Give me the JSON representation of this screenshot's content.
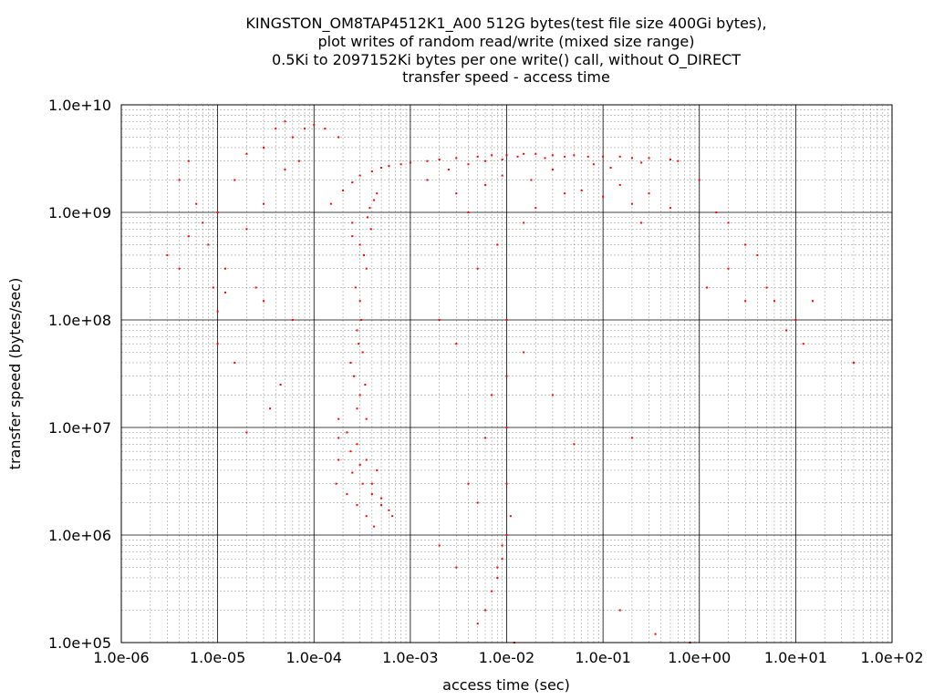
{
  "chart_data": {
    "type": "scatter",
    "title_lines": [
      "KINGSTON_OM8TAP4512K1_A00 512G bytes(test file size 400Gi bytes),",
      "plot writes of random read/write (mixed size range)",
      "0.5Ki to 2097152Ki bytes per one write() call, without O_DIRECT",
      "transfer speed - access time"
    ],
    "xlabel": "access time (sec)",
    "ylabel": "transfer speed (bytes/sec)",
    "x_scale": "log",
    "y_scale": "log",
    "xlim": [
      1e-06,
      100
    ],
    "ylim": [
      100000.0,
      10000000000.0
    ],
    "x_ticks": [
      "1.0e-06",
      "1.0e-05",
      "1.0e-04",
      "1.0e-03",
      "1.0e-02",
      "1.0e-01",
      "1.0e+00",
      "1.0e+01",
      "1.0e+02"
    ],
    "y_ticks": [
      "1.0e+05",
      "1.0e+06",
      "1.0e+07",
      "1.0e+08",
      "1.0e+09",
      "1.0e+10"
    ],
    "grid": true,
    "legend": "none",
    "marker_color": "#ff0000",
    "series": [
      {
        "points": [
          [
            0.00015,
            1200000000.0
          ],
          [
            0.0002,
            1600000000.0
          ],
          [
            0.00025,
            1900000000.0
          ],
          [
            0.0003,
            2200000000.0
          ],
          [
            0.0004,
            2400000000.0
          ],
          [
            0.0005,
            2600000000.0
          ],
          [
            0.0006,
            2700000000.0
          ],
          [
            0.0008,
            2800000000.0
          ],
          [
            0.001,
            2900000000.0
          ],
          [
            0.0015,
            3000000000.0
          ],
          [
            0.002,
            3100000000.0
          ],
          [
            0.003,
            3200000000.0
          ],
          [
            0.005,
            3300000000.0
          ],
          [
            0.007,
            3400000000.0
          ],
          [
            0.01,
            3400000000.0
          ],
          [
            0.015,
            3500000000.0
          ],
          [
            0.02,
            3500000000.0
          ],
          [
            0.03,
            3400000000.0
          ],
          [
            0.05,
            3400000000.0
          ],
          [
            0.07,
            3300000000.0
          ],
          [
            0.1,
            3300000000.0
          ],
          [
            0.15,
            3300000000.0
          ],
          [
            0.2,
            3200000000.0
          ],
          [
            0.3,
            3200000000.0
          ],
          [
            0.5,
            3100000000.0
          ],
          [
            0.6,
            3000000000.0
          ],
          [
            0.00025,
            800000000.0
          ],
          [
            0.0003,
            500000000.0
          ],
          [
            0.00035,
            300000000.0
          ],
          [
            0.0003,
            150000000.0
          ],
          [
            0.00028,
            80000000.0
          ],
          [
            0.00032,
            50000000.0
          ],
          [
            0.00026,
            30000000.0
          ],
          [
            0.0003,
            20000000.0
          ],
          [
            0.00035,
            12000000.0
          ],
          [
            0.00025,
            600000000.0
          ],
          [
            0.00033,
            400000000.0
          ],
          [
            0.00027,
            200000000.0
          ],
          [
            0.00031,
            100000000.0
          ],
          [
            0.00029,
            60000000.0
          ],
          [
            0.00024,
            40000000.0
          ],
          [
            0.00034,
            25000000.0
          ],
          [
            0.00028,
            15000000.0
          ],
          [
            0.00036,
            900000000.0
          ],
          [
            0.00038,
            1100000000.0
          ],
          [
            0.00042,
            1300000000.0
          ],
          [
            0.00039,
            700000000.0
          ],
          [
            0.00045,
            1500000000.0
          ],
          [
            0.00018,
            12000000.0
          ],
          [
            0.00022,
            9000000.0
          ],
          [
            0.00028,
            7000000.0
          ],
          [
            0.00035,
            5000000.0
          ],
          [
            0.00045,
            4000000.0
          ],
          [
            0.00018,
            8000000.0
          ],
          [
            0.00024,
            6000000.0
          ],
          [
            0.0003,
            4500000.0
          ],
          [
            0.0004,
            3000000.0
          ],
          [
            0.0005,
            2200000.0
          ],
          [
            0.0006,
            1700000.0
          ],
          [
            0.00017,
            3000000.0
          ],
          [
            0.00022,
            2400000.0
          ],
          [
            0.00028,
            1900000.0
          ],
          [
            0.00035,
            1500000.0
          ],
          [
            0.00042,
            1200000.0
          ],
          [
            0.00018,
            5000000.0
          ],
          [
            0.00025,
            3800000.0
          ],
          [
            0.00032,
            3000000.0
          ],
          [
            0.0004,
            2400000.0
          ],
          [
            0.0005,
            1900000.0
          ],
          [
            0.00065,
            1500000.0
          ],
          [
            0.005,
            150000.0
          ],
          [
            0.006,
            200000.0
          ],
          [
            0.007,
            300000.0
          ],
          [
            0.008,
            400000.0
          ],
          [
            0.009,
            600000.0
          ],
          [
            0.01,
            1000000.0
          ],
          [
            0.01,
            3000000.0
          ],
          [
            0.01,
            10000000.0
          ],
          [
            0.01,
            30000000.0
          ],
          [
            0.01,
            100000000.0
          ],
          [
            0.008,
            500000.0
          ],
          [
            0.009,
            800000.0
          ],
          [
            0.011,
            1500000.0
          ],
          [
            0.012,
            100000.0
          ],
          [
            0.005,
            2000000.0
          ],
          [
            0.003,
            500000.0
          ],
          [
            0.002,
            800000.0
          ],
          [
            0.004,
            3000000.0
          ],
          [
            0.006,
            8000000.0
          ],
          [
            0.007,
            20000000.0
          ],
          [
            0.003,
            60000000.0
          ],
          [
            0.002,
            100000000.0
          ],
          [
            0.005,
            300000000.0
          ],
          [
            0.008,
            500000000.0
          ],
          [
            0.015,
            800000000.0
          ],
          [
            0.02,
            1100000000.0
          ],
          [
            0.04,
            1500000000.0
          ],
          [
            0.06,
            1600000000.0
          ],
          [
            0.1,
            1400000000.0
          ],
          [
            0.15,
            1800000000.0
          ],
          [
            0.2,
            1200000000.0
          ],
          [
            0.25,
            800000000.0
          ],
          [
            0.3,
            1500000000.0
          ],
          [
            0.5,
            1100000000.0
          ],
          [
            1,
            2000000000.0
          ],
          [
            1.5,
            1000000000.0
          ],
          [
            2,
            800000000.0
          ],
          [
            3,
            500000000.0
          ],
          [
            4,
            400000000.0
          ],
          [
            1.2,
            200000000.0
          ],
          [
            2,
            300000000.0
          ],
          [
            3,
            150000000.0
          ],
          [
            5,
            200000000.0
          ],
          [
            6,
            150000000.0
          ],
          [
            8,
            80000000.0
          ],
          [
            10,
            100000000.0
          ],
          [
            12,
            60000000.0
          ],
          [
            15,
            150000000.0
          ],
          [
            40,
            40000000.0
          ],
          [
            0.8,
            100000.0
          ],
          [
            0.35,
            120000.0
          ],
          [
            0.15,
            200000.0
          ],
          [
            0.2,
            8000000.0
          ],
          [
            0.05,
            7000000.0
          ],
          [
            0.03,
            20000000.0
          ],
          [
            0.015,
            50000000.0
          ],
          [
            3e-06,
            400000000.0
          ],
          [
            4e-06,
            2000000000.0
          ],
          [
            5e-06,
            3000000000.0
          ],
          [
            6e-06,
            1200000000.0
          ],
          [
            8e-06,
            500000000.0
          ],
          [
            1e-05,
            120000000.0
          ],
          [
            1.2e-05,
            180000000.0
          ],
          [
            1e-05,
            1000000000.0
          ],
          [
            1.5e-05,
            2000000000.0
          ],
          [
            2e-05,
            3500000000.0
          ],
          [
            3e-05,
            4000000000.0
          ],
          [
            4e-05,
            6000000000.0
          ],
          [
            5e-05,
            7000000000.0
          ],
          [
            6e-05,
            5000000000.0
          ],
          [
            8e-05,
            6000000000.0
          ],
          [
            0.0001,
            6500000000.0
          ],
          [
            0.00013,
            6000000000.0
          ],
          [
            0.00018,
            5000000000.0
          ],
          [
            2.5e-05,
            200000000.0
          ],
          [
            3e-05,
            150000000.0
          ],
          [
            3.5e-05,
            15000000.0
          ],
          [
            4.5e-05,
            25000000.0
          ],
          [
            1e-05,
            60000000.0
          ],
          [
            1.5e-05,
            40000000.0
          ],
          [
            2e-05,
            9000000.0
          ],
          [
            6e-05,
            100000000.0
          ],
          [
            4e-06,
            300000000.0
          ],
          [
            5e-06,
            600000000.0
          ],
          [
            7e-06,
            800000000.0
          ],
          [
            9e-06,
            200000000.0
          ],
          [
            1.2e-05,
            300000000.0
          ],
          [
            2e-05,
            700000000.0
          ],
          [
            3e-05,
            1200000000.0
          ],
          [
            5e-05,
            2500000000.0
          ],
          [
            7e-05,
            3000000000.0
          ],
          [
            0.0015,
            2000000000.0
          ],
          [
            0.0025,
            2500000000.0
          ],
          [
            0.004,
            2800000000.0
          ],
          [
            0.006,
            3000000000.0
          ],
          [
            0.009,
            3100000000.0
          ],
          [
            0.013,
            3300000000.0
          ],
          [
            0.025,
            3200000000.0
          ],
          [
            0.04,
            3300000000.0
          ],
          [
            0.003,
            1500000000.0
          ],
          [
            0.004,
            1000000000.0
          ],
          [
            0.006,
            1800000000.0
          ],
          [
            0.009,
            2200000000.0
          ],
          [
            0.018,
            2000000000.0
          ],
          [
            0.03,
            2500000000.0
          ],
          [
            0.08,
            2800000000.0
          ],
          [
            0.12,
            2600000000.0
          ],
          [
            0.25,
            2900000000.0
          ]
        ]
      }
    ]
  }
}
